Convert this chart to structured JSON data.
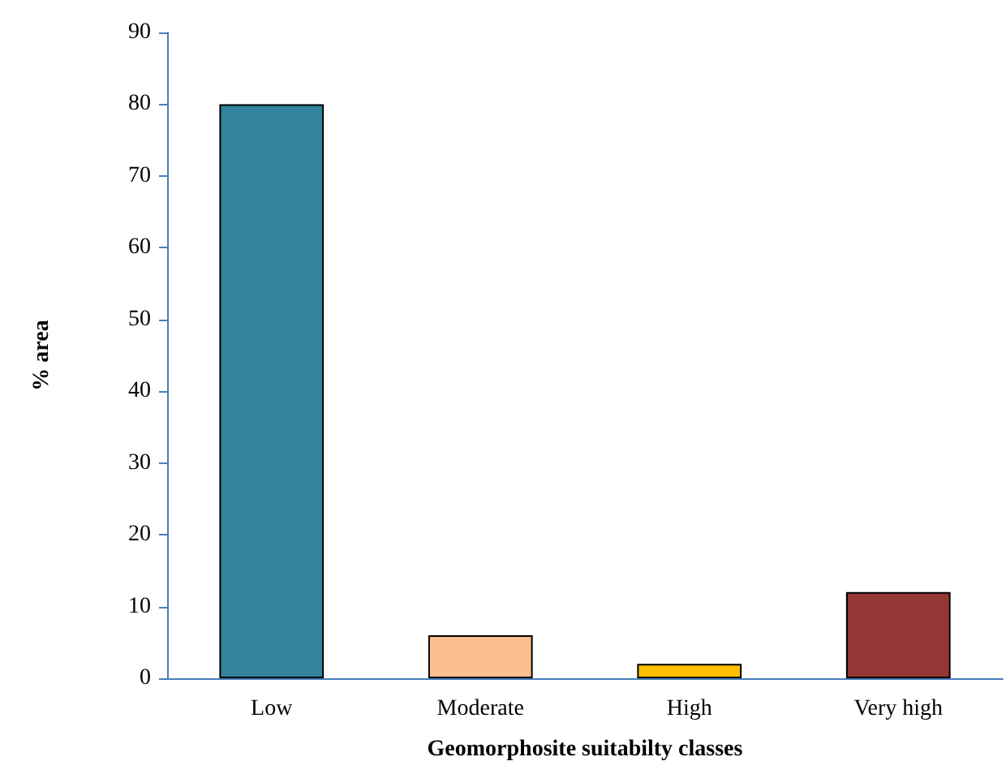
{
  "chart_data": {
    "type": "bar",
    "xlabel": "Geomorphosite suitabilty classes",
    "ylabel": "% area",
    "categories": [
      "Low",
      "Moderate",
      "High",
      "Very high"
    ],
    "values": [
      80,
      6,
      2,
      12
    ],
    "colors": [
      "#31849b",
      "#fac090",
      "#ffc000",
      "#953735"
    ],
    "ylim": [
      0,
      90
    ],
    "yticks": [
      0,
      10,
      20,
      30,
      40,
      50,
      60,
      70,
      80,
      90
    ],
    "grid": false
  }
}
